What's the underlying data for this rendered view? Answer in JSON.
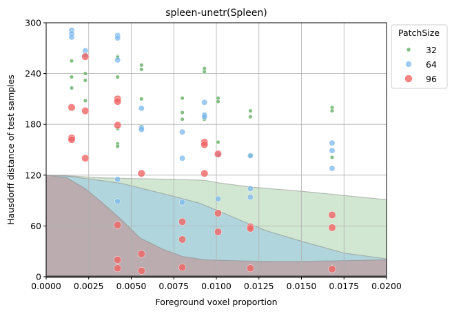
{
  "chart_data": {
    "type": "scatter",
    "title": "spleen-unetr(Spleen)",
    "xlabel": "Foreground voxel proportion",
    "ylabel": "Hausdorff distance of test samples",
    "xlim": [
      0,
      0.02
    ],
    "ylim": [
      0,
      300
    ],
    "xticks": [
      "0.0000",
      "0.0025",
      "0.0050",
      "0.0075",
      "0.0100",
      "0.0125",
      "0.0150",
      "0.0175",
      "0.0200"
    ],
    "yticks": [
      "0",
      "60",
      "120",
      "180",
      "240",
      "300"
    ],
    "grid": true,
    "legend": {
      "title": "PatchSize",
      "position": "outside-top-right"
    },
    "series": [
      {
        "name": "32",
        "color": "#5aa85a",
        "points": [
          [
            0.0015,
            255
          ],
          [
            0.0015,
            236
          ],
          [
            0.0015,
            223
          ],
          [
            0.0023,
            261
          ],
          [
            0.0023,
            240
          ],
          [
            0.0023,
            232
          ],
          [
            0.0023,
            208
          ],
          [
            0.0042,
            260
          ],
          [
            0.0042,
            259
          ],
          [
            0.0042,
            236
          ],
          [
            0.0042,
            175
          ],
          [
            0.0042,
            157
          ],
          [
            0.0042,
            154
          ],
          [
            0.0056,
            250
          ],
          [
            0.0056,
            245
          ],
          [
            0.0056,
            210
          ],
          [
            0.0056,
            178
          ],
          [
            0.008,
            211
          ],
          [
            0.008,
            194
          ],
          [
            0.008,
            186
          ],
          [
            0.0093,
            246
          ],
          [
            0.0093,
            242
          ],
          [
            0.0093,
            191
          ],
          [
            0.0093,
            186
          ],
          [
            0.0101,
            211
          ],
          [
            0.0101,
            207
          ],
          [
            0.0101,
            159
          ],
          [
            0.012,
            196
          ],
          [
            0.012,
            189
          ],
          [
            0.012,
            143
          ],
          [
            0.0168,
            200
          ],
          [
            0.0168,
            196
          ],
          [
            0.0168,
            141
          ]
        ]
      },
      {
        "name": "64",
        "color": "#7bb8ee",
        "points": [
          [
            0.0015,
            291
          ],
          [
            0.0015,
            287
          ],
          [
            0.0015,
            283
          ],
          [
            0.0023,
            267
          ],
          [
            0.0023,
            262
          ],
          [
            0.0042,
            285
          ],
          [
            0.0042,
            282
          ],
          [
            0.0042,
            256
          ],
          [
            0.0042,
            115
          ],
          [
            0.0042,
            89
          ],
          [
            0.0056,
            199
          ],
          [
            0.0056,
            176
          ],
          [
            0.0056,
            174
          ],
          [
            0.008,
            171
          ],
          [
            0.008,
            140
          ],
          [
            0.008,
            88
          ],
          [
            0.0093,
            206
          ],
          [
            0.0093,
            191
          ],
          [
            0.0093,
            189
          ],
          [
            0.0101,
            144
          ],
          [
            0.0101,
            92
          ],
          [
            0.012,
            143
          ],
          [
            0.012,
            104
          ],
          [
            0.012,
            94
          ],
          [
            0.0168,
            158
          ],
          [
            0.0168,
            149
          ],
          [
            0.0168,
            128
          ]
        ]
      },
      {
        "name": "96",
        "color": "#f06565",
        "points": [
          [
            0.0015,
            200
          ],
          [
            0.0015,
            164
          ],
          [
            0.0015,
            162
          ],
          [
            0.0023,
            260
          ],
          [
            0.0023,
            196
          ],
          [
            0.0023,
            140
          ],
          [
            0.0042,
            210
          ],
          [
            0.0042,
            207
          ],
          [
            0.0042,
            179
          ],
          [
            0.0042,
            61
          ],
          [
            0.0042,
            20
          ],
          [
            0.0042,
            10
          ],
          [
            0.0056,
            122
          ],
          [
            0.0056,
            27
          ],
          [
            0.0056,
            7
          ],
          [
            0.008,
            65
          ],
          [
            0.008,
            44
          ],
          [
            0.008,
            11
          ],
          [
            0.0093,
            159
          ],
          [
            0.0093,
            156
          ],
          [
            0.0093,
            122
          ],
          [
            0.0101,
            145
          ],
          [
            0.0101,
            75
          ],
          [
            0.0101,
            53
          ],
          [
            0.012,
            59
          ],
          [
            0.012,
            57
          ],
          [
            0.012,
            10
          ],
          [
            0.0168,
            73
          ],
          [
            0.0168,
            58
          ],
          [
            0.0168,
            9
          ]
        ]
      }
    ],
    "areas": [
      {
        "color": "#5aa85a",
        "opacity": 0.28,
        "boundary": [
          [
            0,
            120
          ],
          [
            0.0015,
            119
          ],
          [
            0.003,
            117
          ],
          [
            0.005,
            116
          ],
          [
            0.0075,
            115
          ],
          [
            0.0093,
            114
          ],
          [
            0.0101,
            111
          ],
          [
            0.012,
            106
          ],
          [
            0.015,
            101
          ],
          [
            0.0175,
            96
          ],
          [
            0.02,
            91
          ]
        ]
      },
      {
        "color": "#7bb8ee",
        "opacity": 0.38,
        "boundary": [
          [
            0,
            120
          ],
          [
            0.0012,
            119
          ],
          [
            0.0023,
            116
          ],
          [
            0.0035,
            113
          ],
          [
            0.0045,
            110
          ],
          [
            0.0055,
            105
          ],
          [
            0.0075,
            95
          ],
          [
            0.009,
            87
          ],
          [
            0.0101,
            78
          ],
          [
            0.0115,
            66
          ],
          [
            0.013,
            54
          ],
          [
            0.015,
            42
          ],
          [
            0.0175,
            28
          ],
          [
            0.02,
            21
          ]
        ]
      },
      {
        "color": "#c38a8a",
        "opacity": 0.55,
        "boundary": [
          [
            0,
            120
          ],
          [
            0.0012,
            117
          ],
          [
            0.0023,
            104
          ],
          [
            0.0035,
            84
          ],
          [
            0.0045,
            66
          ],
          [
            0.0055,
            46
          ],
          [
            0.0068,
            33
          ],
          [
            0.008,
            24
          ],
          [
            0.0093,
            20
          ],
          [
            0.011,
            19
          ],
          [
            0.013,
            18
          ],
          [
            0.015,
            18
          ],
          [
            0.0175,
            19
          ],
          [
            0.02,
            20
          ]
        ]
      }
    ]
  }
}
